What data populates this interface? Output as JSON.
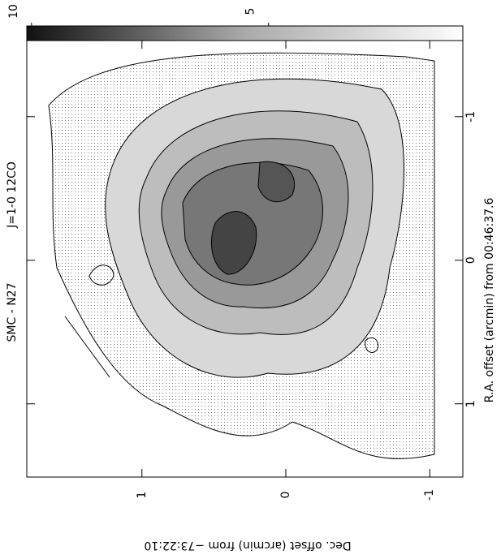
{
  "chart_data": {
    "type": "contour",
    "title": "SMC - N27",
    "subtitle": "J=1-0 12CO",
    "x_label": "R.A. offset (arcmin) from 00:46:37.6",
    "y_label": "Dec. offset (arcmin) from −73:22:10",
    "xlim": [
      -1.53,
      1.51
    ],
    "xticks": [
      1,
      0,
      -1
    ],
    "ylim": [
      1.8,
      -1.23
    ],
    "yticks": [
      1,
      0,
      -1
    ],
    "colorbar": {
      "clim": [
        10.1,
        0.9
      ],
      "ticks": [
        10,
        5
      ]
    }
  }
}
